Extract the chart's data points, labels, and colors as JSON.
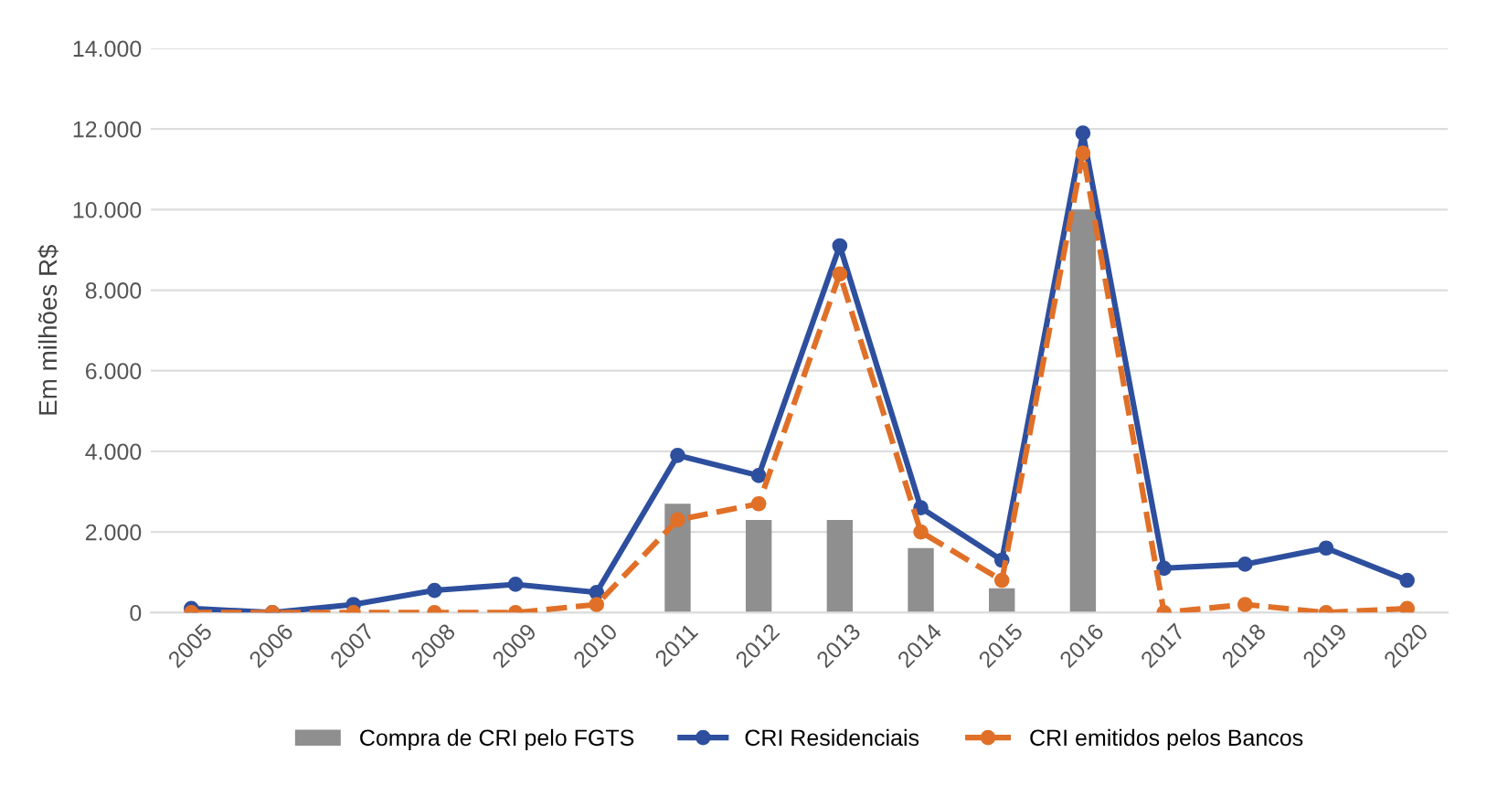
{
  "chart_data": {
    "type": "line",
    "ylabel": "Em milhões R$",
    "categories": [
      "2005",
      "2006",
      "2007",
      "2008",
      "2009",
      "2010",
      "2011",
      "2012",
      "2013",
      "2014",
      "2015",
      "2016",
      "2017",
      "2018",
      "2019",
      "2020"
    ],
    "series": [
      {
        "name": "Compra de CRI pelo FGTS",
        "type": "bar",
        "color": "#8f8f8f",
        "values": [
          null,
          null,
          null,
          null,
          null,
          null,
          2700,
          2300,
          2300,
          1600,
          600,
          10000,
          null,
          null,
          null,
          null
        ]
      },
      {
        "name": "CRI Residenciais",
        "color": "#2e4f9e",
        "line_style": "solid",
        "values": [
          100,
          0,
          200,
          550,
          700,
          500,
          3900,
          3400,
          9100,
          2600,
          1300,
          11900,
          1100,
          1200,
          1600,
          800
        ]
      },
      {
        "name": "CRI emitidos pelos Bancos",
        "color": "#e07028",
        "line_style": "dashed",
        "values": [
          0,
          0,
          0,
          0,
          0,
          200,
          2300,
          2700,
          8400,
          2000,
          800,
          11400,
          0,
          200,
          0,
          100
        ]
      }
    ],
    "marker": "circle",
    "ylim": [
      0,
      14000
    ],
    "yticks": [
      0,
      {
        "value": 2000,
        "label": "2.000"
      },
      {
        "value": 4000,
        "label": "4.000"
      },
      {
        "value": 6000,
        "label": "6.000"
      },
      {
        "value": 8000,
        "label": "8.000"
      },
      {
        "value": 10000,
        "label": "10.000"
      },
      {
        "value": 12000,
        "label": "12.000"
      },
      {
        "value": 14000,
        "label": "14.000"
      }
    ],
    "grid": "y",
    "legend": "bottom"
  }
}
